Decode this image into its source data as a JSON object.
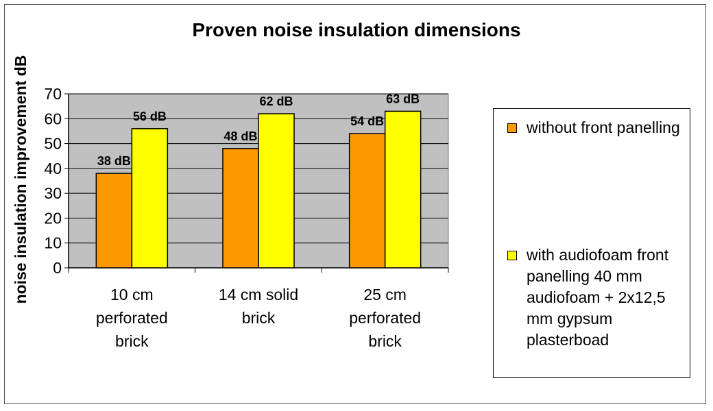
{
  "chart_data": {
    "type": "bar",
    "title": "Proven noise insulation dimensions",
    "ylabel": "noise insulation improvement dB",
    "xlabel": "",
    "categories": [
      "10 cm\nperforated\nbrick",
      "14 cm solid\nbrick",
      "25 cm\nperforated\nbrick"
    ],
    "series": [
      {
        "name": "without front panelling",
        "values": [
          38,
          48,
          54
        ],
        "labels": [
          "38 dB",
          "48 dB",
          "54 dB"
        ],
        "color": "#ff9900"
      },
      {
        "name": "with audiofoam front panelling 40 mm audiofoam + 2x12,5 mm gypsum plasterboad",
        "values": [
          56,
          62,
          63
        ],
        "labels": [
          "56 dB",
          "62 dB",
          "63 dB"
        ],
        "color": "#ffff00"
      }
    ],
    "ylim": [
      0,
      70
    ],
    "yticks": [
      "0",
      "10",
      "20",
      "30",
      "40",
      "50",
      "60",
      "70"
    ],
    "grid": true,
    "plot_background": "#c0c0c0",
    "legend_position": "right"
  }
}
